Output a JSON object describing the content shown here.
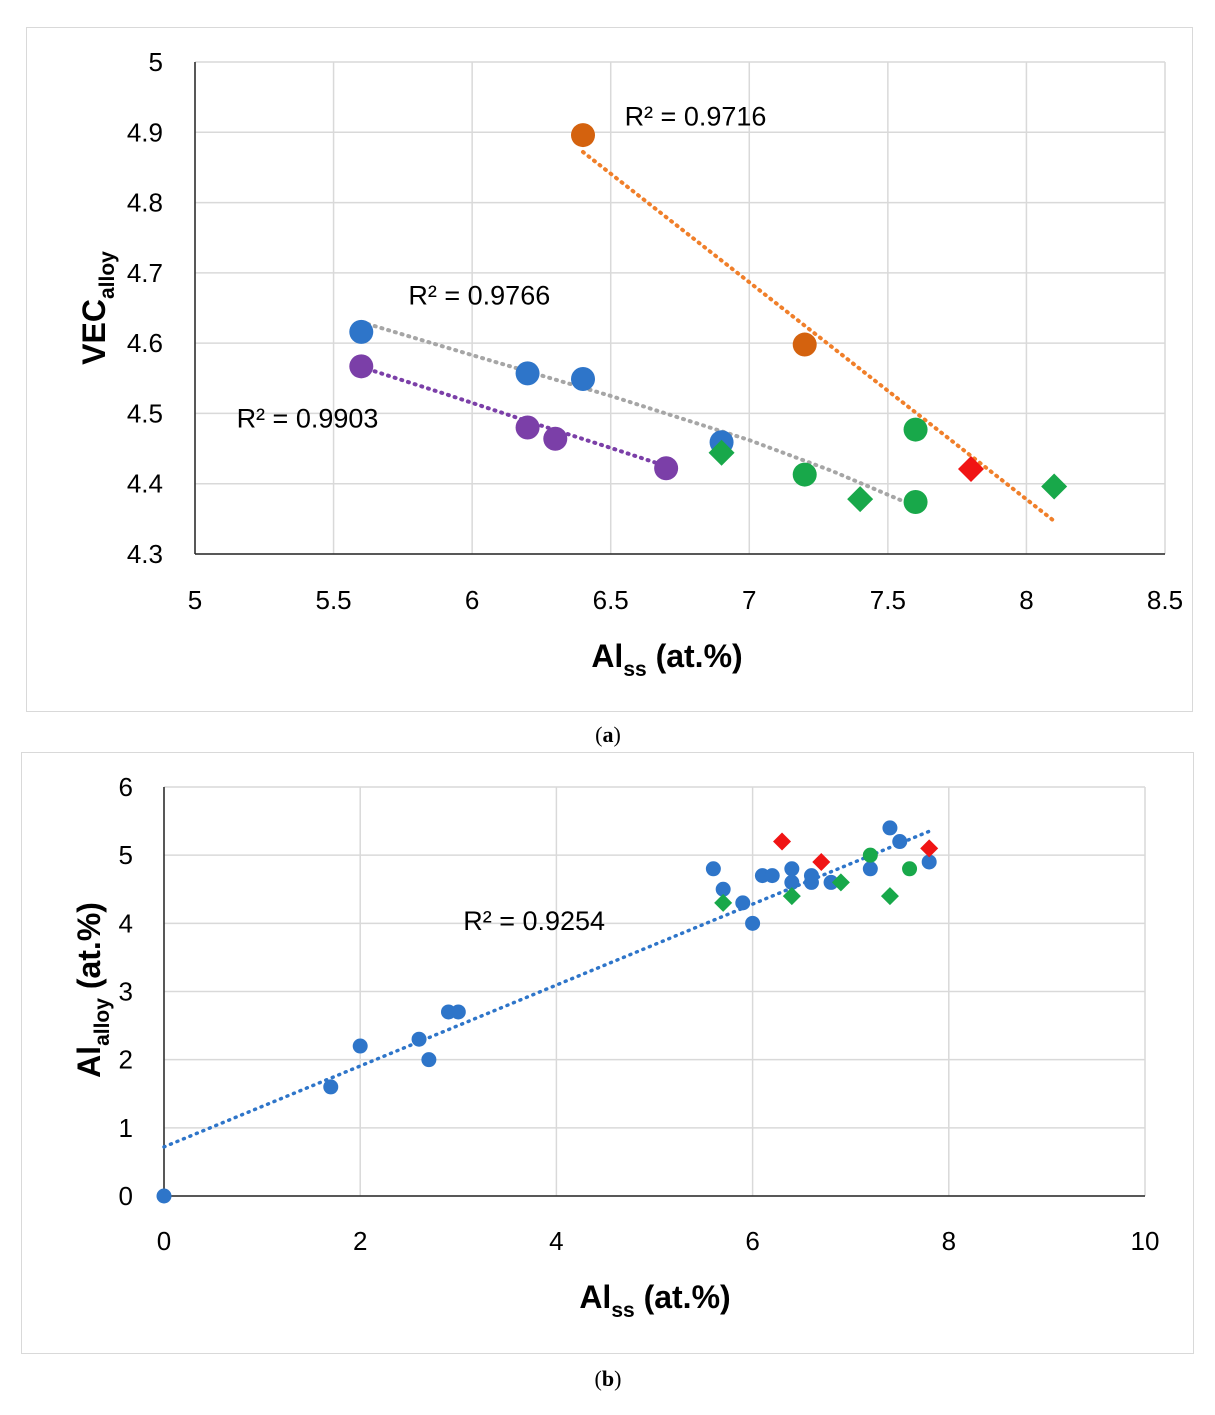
{
  "chart_data": [
    {
      "type": "scatter",
      "panel_label": "a",
      "title": "",
      "xlabel": {
        "main": "Al",
        "sub": "ss",
        "suffix": " (at.%)"
      },
      "ylabel": {
        "main": "VEC",
        "sub": "alloy"
      },
      "xlim": [
        5,
        8.5
      ],
      "ylim": [
        4.3,
        5
      ],
      "xticks": [
        "5",
        "5.5",
        "6",
        "6.5",
        "7",
        "7.5",
        "8",
        "8.5"
      ],
      "yticks": [
        "4.3",
        "4.4",
        "4.5",
        "4.6",
        "4.7",
        "4.8",
        "4.9",
        "5"
      ],
      "grid": true,
      "series": [
        {
          "name": "blue",
          "marker": "circle",
          "color": "#2e75c9",
          "points": [
            [
              5.6,
              4.616
            ],
            [
              6.2,
              4.557
            ],
            [
              6.4,
              4.549
            ],
            [
              6.9,
              4.459
            ]
          ]
        },
        {
          "name": "purple",
          "marker": "circle",
          "color": "#7b3fa8",
          "points": [
            [
              5.6,
              4.567
            ],
            [
              6.2,
              4.48
            ],
            [
              6.3,
              4.464
            ],
            [
              6.7,
              4.422
            ]
          ]
        },
        {
          "name": "orange",
          "marker": "circle",
          "color": "#d4620e",
          "points": [
            [
              6.4,
              4.896
            ],
            [
              7.2,
              4.598
            ]
          ]
        },
        {
          "name": "green-circle",
          "marker": "circle",
          "color": "#18a84a",
          "points": [
            [
              7.2,
              4.413
            ],
            [
              7.6,
              4.477
            ],
            [
              7.6,
              4.374
            ]
          ]
        },
        {
          "name": "green-diamond",
          "marker": "diamond",
          "color": "#18a84a",
          "points": [
            [
              6.9,
              4.444
            ],
            [
              7.4,
              4.378
            ],
            [
              8.1,
              4.396
            ]
          ]
        },
        {
          "name": "red-diamond",
          "marker": "diamond",
          "color": "#f01414",
          "points": [
            [
              7.8,
              4.421
            ]
          ]
        }
      ],
      "trendlines": [
        {
          "name": "grey-trend",
          "color": "#a6a6a6",
          "kind": "poly",
          "points": [
            [
              5.6,
              4.63
            ],
            [
              6.0,
              4.583
            ],
            [
              6.5,
              4.525
            ],
            [
              7.0,
              4.462
            ],
            [
              7.3,
              4.418
            ],
            [
              7.55,
              4.376
            ],
            [
              7.6,
              4.368
            ]
          ]
        },
        {
          "name": "purple-trend",
          "color": "#7b3fa8",
          "kind": "poly",
          "points": [
            [
              5.6,
              4.566
            ],
            [
              5.9,
              4.528
            ],
            [
              6.2,
              4.489
            ],
            [
              6.5,
              4.451
            ],
            [
              6.7,
              4.425
            ]
          ]
        },
        {
          "name": "orange-trend",
          "color": "#f07f2a",
          "kind": "linear",
          "points": [
            [
              6.4,
              4.872
            ],
            [
              8.1,
              4.347
            ]
          ]
        }
      ],
      "annotations": [
        {
          "text": "R² = 0.9716",
          "x": 6.55,
          "y": 4.91
        },
        {
          "text": "R² = 0.9766",
          "x": 5.77,
          "y": 4.655
        },
        {
          "text": "R² = 0.9903",
          "x": 5.15,
          "y": 4.48
        }
      ]
    },
    {
      "type": "scatter",
      "panel_label": "b",
      "title": "",
      "xlabel": {
        "main": "Al",
        "sub": "ss",
        "suffix": " (at.%)"
      },
      "ylabel": {
        "main": "Al",
        "sub": "alloy",
        "suffix": " (at.%)"
      },
      "xlim": [
        0,
        10
      ],
      "ylim": [
        0,
        6
      ],
      "xticks": [
        "0",
        "2",
        "4",
        "6",
        "8",
        "10"
      ],
      "yticks": [
        "0",
        "1",
        "2",
        "3",
        "4",
        "5",
        "6"
      ],
      "grid": true,
      "series": [
        {
          "name": "blue",
          "marker": "circle",
          "color": "#2e75c9",
          "points": [
            [
              0,
              0
            ],
            [
              1.7,
              1.6
            ],
            [
              2.0,
              2.2
            ],
            [
              2.6,
              2.3
            ],
            [
              2.7,
              2.0
            ],
            [
              2.9,
              2.7
            ],
            [
              3.0,
              2.7
            ],
            [
              5.6,
              4.8
            ],
            [
              5.7,
              4.5
            ],
            [
              5.9,
              4.3
            ],
            [
              6.0,
              4.0
            ],
            [
              6.1,
              4.7
            ],
            [
              6.2,
              4.7
            ],
            [
              6.4,
              4.6
            ],
            [
              6.4,
              4.8
            ],
            [
              6.6,
              4.6
            ],
            [
              6.6,
              4.7
            ],
            [
              6.8,
              4.6
            ],
            [
              7.2,
              4.8
            ],
            [
              7.4,
              5.4
            ],
            [
              7.5,
              5.2
            ],
            [
              7.8,
              4.9
            ]
          ]
        },
        {
          "name": "green-circle",
          "marker": "circle",
          "color": "#18a84a",
          "points": [
            [
              7.2,
              5.0
            ],
            [
              7.6,
              4.8
            ]
          ]
        },
        {
          "name": "green-diamond",
          "marker": "diamond",
          "color": "#18a84a",
          "points": [
            [
              5.7,
              4.3
            ],
            [
              6.4,
              4.4
            ],
            [
              6.9,
              4.6
            ],
            [
              7.4,
              4.4
            ]
          ]
        },
        {
          "name": "red-diamond",
          "marker": "diamond",
          "color": "#f01414",
          "points": [
            [
              6.3,
              5.2
            ],
            [
              6.7,
              4.9
            ],
            [
              7.8,
              5.1
            ]
          ]
        }
      ],
      "trendlines": [
        {
          "name": "blue-trend",
          "color": "#2e75c9",
          "kind": "linear",
          "points": [
            [
              0,
              0.72
            ],
            [
              7.8,
              5.35
            ]
          ]
        }
      ],
      "annotations": [
        {
          "text": "R² = 0.9254",
          "x": 3.05,
          "y": 3.9
        }
      ]
    }
  ],
  "captions": {
    "a": "a",
    "b": "b"
  }
}
